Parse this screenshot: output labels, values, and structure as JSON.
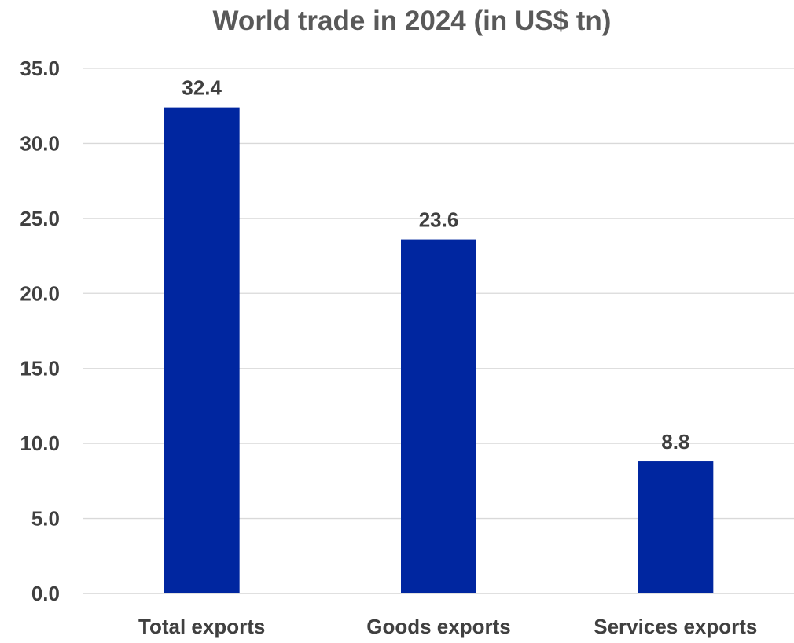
{
  "chart_data": {
    "type": "bar",
    "title": "World trade in 2024 (in US$ tn)",
    "categories": [
      "Total exports",
      "Goods exports",
      "Services exports"
    ],
    "values": [
      32.4,
      23.6,
      8.8
    ],
    "value_labels": [
      "32.4",
      "23.6",
      "8.8"
    ],
    "ylim": [
      0,
      35
    ],
    "yticks": [
      "0.0",
      "5.0",
      "10.0",
      "15.0",
      "20.0",
      "25.0",
      "30.0",
      "35.0"
    ],
    "grid": true,
    "legend": "none",
    "colors": {
      "bar": "#0026A0",
      "text": "#404040",
      "grid": "#d9d9d9"
    }
  }
}
